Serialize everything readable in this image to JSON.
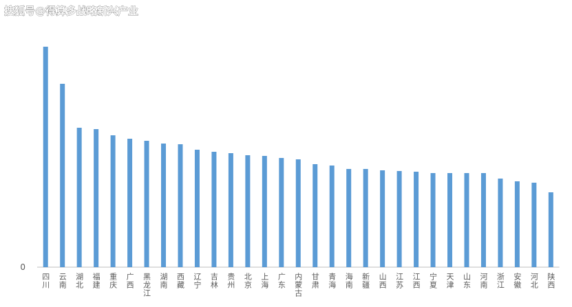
{
  "watermark": "搜狐号@得算多战略新兴产业",
  "chart_data": {
    "type": "bar",
    "categories": [
      "四川",
      "云南",
      "湖北",
      "福建",
      "重庆",
      "广西",
      "黑龙江",
      "湖南",
      "西藏",
      "辽宁",
      "吉林",
      "贵州",
      "北京",
      "上海",
      "广东",
      "内蒙古",
      "甘肃",
      "青海",
      "海南",
      "新疆",
      "山西",
      "江苏",
      "江西",
      "宁夏",
      "天津",
      "山东",
      "河南",
      "浙江",
      "安徽",
      "河北",
      "陕西"
    ],
    "values": [
      321,
      267,
      203,
      201,
      192,
      187,
      184,
      180,
      179,
      171,
      168,
      166,
      163,
      162,
      159,
      157,
      150,
      148,
      143,
      143,
      141,
      140,
      139,
      137,
      137,
      137,
      137,
      129,
      125,
      123,
      109
    ],
    "color": "#5b9bd5",
    "ylim": [
      0,
      340
    ],
    "yticks": [
      0
    ],
    "grid": false
  }
}
